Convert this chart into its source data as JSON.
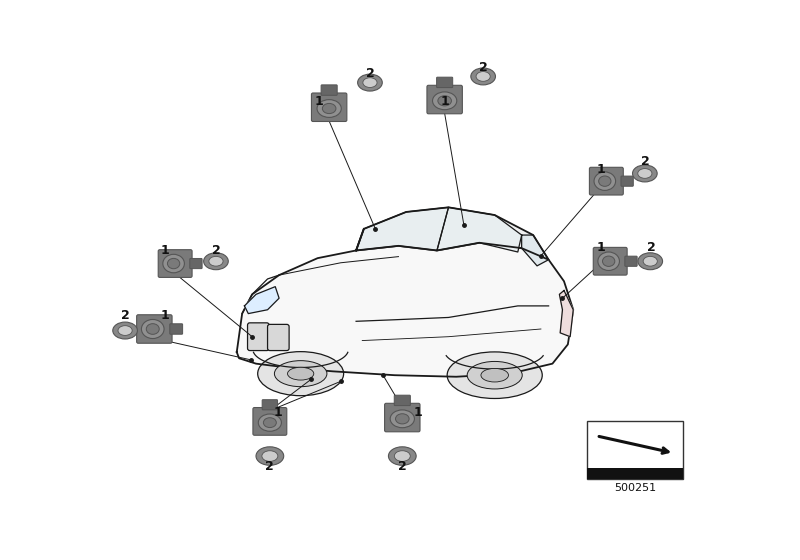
{
  "title": "",
  "bg_color": "#ffffff",
  "fig_width": 8.0,
  "fig_height": 5.6,
  "dpi": 100,
  "part_number": "500251",
  "line_color": "#1a1a1a",
  "text_color": "#111111",
  "sensor_body_color": "#7a7a7a",
  "sensor_face_color": "#909090",
  "sensor_dark": "#555555",
  "ring_outer_color": "#888888",
  "ring_inner_color": "#cccccc"
}
